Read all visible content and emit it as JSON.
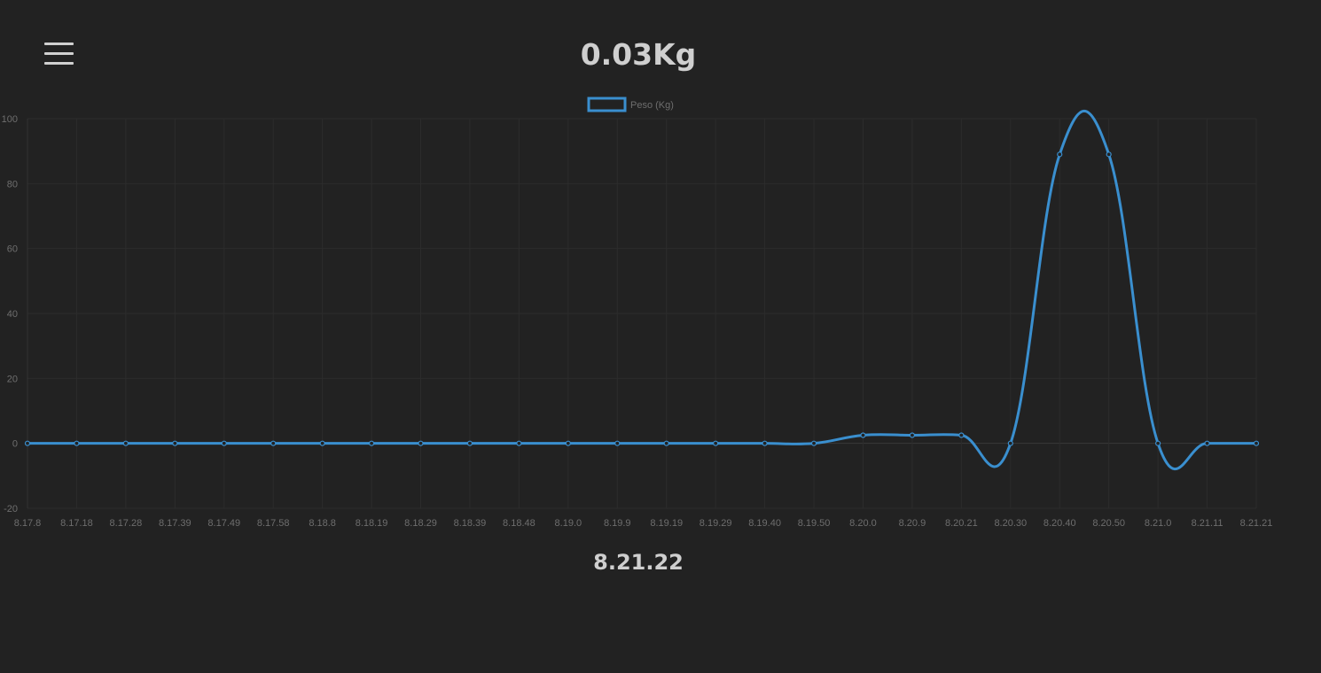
{
  "header": {
    "weight_display": "0.03Kg",
    "menu_icon": "hamburger-menu-icon"
  },
  "footer": {
    "current_time": "8.21.22"
  },
  "colors": {
    "background": "#222222",
    "series": "#3a8fcf",
    "grid": "#2c2c2c",
    "tick_text": "#6e6e6e",
    "title_text": "#cfcfcf"
  },
  "chart_data": {
    "type": "line",
    "title": "",
    "xlabel": "",
    "ylabel": "",
    "ylim": [
      -20,
      100
    ],
    "yticks": [
      100,
      80,
      60,
      40,
      20,
      0,
      -20
    ],
    "legend": "top-center",
    "grid": true,
    "categories": [
      "8.17.8",
      "8.17.18",
      "8.17.28",
      "8.17.39",
      "8.17.49",
      "8.17.58",
      "8.18.8",
      "8.18.19",
      "8.18.29",
      "8.18.39",
      "8.18.48",
      "8.19.0",
      "8.19.9",
      "8.19.19",
      "8.19.29",
      "8.19.40",
      "8.19.50",
      "8.20.0",
      "8.20.9",
      "8.20.21",
      "8.20.30",
      "8.20.40",
      "8.20.50",
      "8.21.0",
      "8.21.11",
      "8.21.21"
    ],
    "series": [
      {
        "name": "Peso (Kg)",
        "values": [
          0,
          0,
          0,
          0,
          0,
          0,
          0,
          0,
          0,
          0,
          0,
          0,
          0,
          0,
          0,
          0,
          0,
          2.5,
          2.5,
          2.5,
          0,
          89,
          89,
          0,
          0,
          0
        ]
      }
    ]
  }
}
